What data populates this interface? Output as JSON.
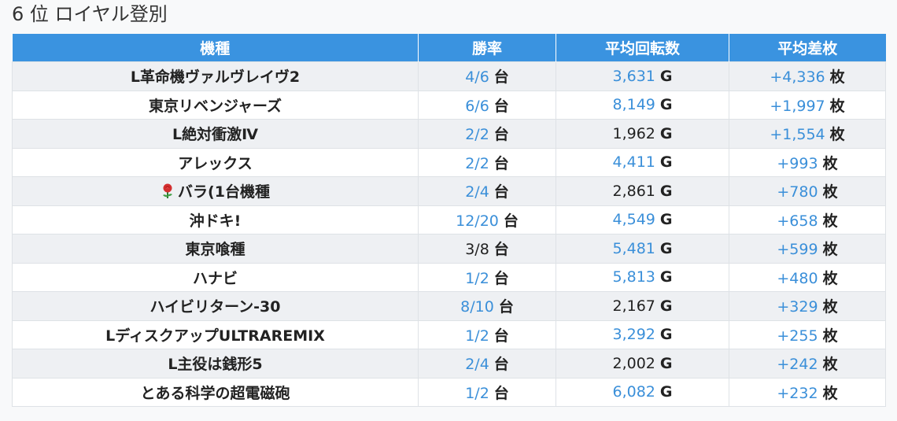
{
  "title": "6 位 ロイヤル登別",
  "table": {
    "headers": [
      "機種",
      "勝率",
      "平均回転数",
      "平均差枚"
    ],
    "units": {
      "win": "台",
      "spins": "G",
      "diff": "枚"
    },
    "rows": [
      {
        "name": "L革命機ヴァルヴレイヴ2",
        "win": "4/6",
        "win_link": true,
        "spins": "3,631",
        "spins_link": true,
        "diff": "+4,336",
        "diff_link": true
      },
      {
        "name": "東京リベンジャーズ",
        "win": "6/6",
        "win_link": true,
        "spins": "8,149",
        "spins_link": true,
        "diff": "+1,997",
        "diff_link": true
      },
      {
        "name": "L絶対衝激Ⅳ",
        "win": "2/2",
        "win_link": true,
        "spins": "1,962",
        "spins_link": false,
        "diff": "+1,554",
        "diff_link": true
      },
      {
        "name": "アレックス",
        "win": "2/2",
        "win_link": true,
        "spins": "4,411",
        "spins_link": true,
        "diff": "+993",
        "diff_link": true
      },
      {
        "name": "バラ(1台機種",
        "icon": "rose-icon",
        "win": "2/4",
        "win_link": true,
        "spins": "2,861",
        "spins_link": false,
        "diff": "+780",
        "diff_link": true
      },
      {
        "name": "沖ドキ!",
        "win": "12/20",
        "win_link": true,
        "spins": "4,549",
        "spins_link": true,
        "diff": "+658",
        "diff_link": true
      },
      {
        "name": "東京喰種",
        "win": "3/8",
        "win_link": false,
        "spins": "5,481",
        "spins_link": true,
        "diff": "+599",
        "diff_link": true
      },
      {
        "name": "ハナビ",
        "win": "1/2",
        "win_link": true,
        "spins": "5,813",
        "spins_link": true,
        "diff": "+480",
        "diff_link": true
      },
      {
        "name": "ハイビリターン-30",
        "win": "8/10",
        "win_link": true,
        "spins": "2,167",
        "spins_link": false,
        "diff": "+329",
        "diff_link": true
      },
      {
        "name": "LディスクアップULTRAREMIX",
        "win": "1/2",
        "win_link": true,
        "spins": "3,292",
        "spins_link": true,
        "diff": "+255",
        "diff_link": true
      },
      {
        "name": "L主役は銭形5",
        "win": "2/4",
        "win_link": true,
        "spins": "2,002",
        "spins_link": false,
        "diff": "+242",
        "diff_link": true
      },
      {
        "name": "とある科学の超電磁砲",
        "win": "1/2",
        "win_link": true,
        "spins": "6,082",
        "spins_link": true,
        "diff": "+232",
        "diff_link": true
      }
    ]
  },
  "colors": {
    "header_bg": "#3a93e0",
    "link": "#3a8fd9",
    "row_alt": "#eef0f3"
  }
}
